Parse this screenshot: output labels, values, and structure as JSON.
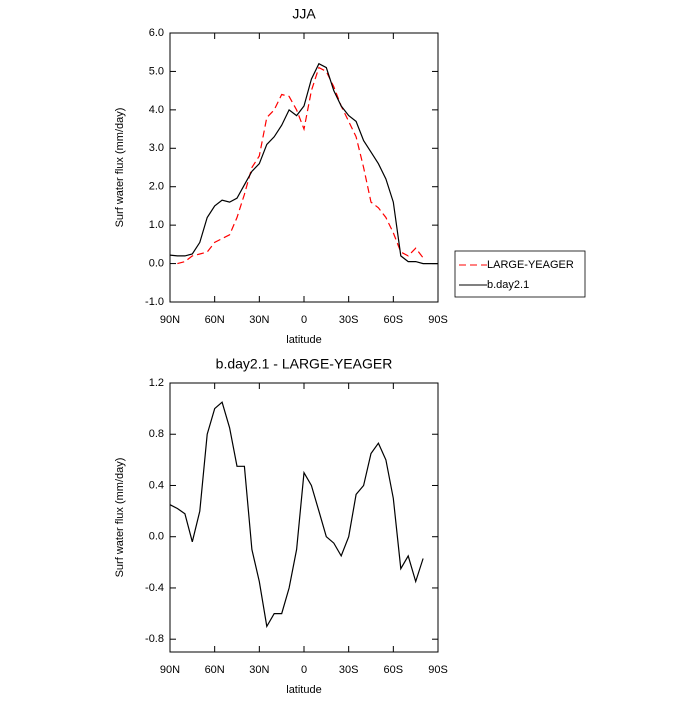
{
  "chart_data": [
    {
      "type": "line",
      "title": "JJA",
      "xlabel": "latitude",
      "ylabel": "Surf water flux (mm/day)",
      "x": [
        90,
        85,
        80,
        75,
        70,
        65,
        60,
        55,
        50,
        45,
        40,
        35,
        30,
        25,
        20,
        15,
        10,
        5,
        0,
        -5,
        -10,
        -15,
        -20,
        -25,
        -30,
        -35,
        -40,
        -45,
        -50,
        -55,
        -60,
        -65,
        -70,
        -75,
        -80,
        -85,
        -90
      ],
      "xlim": [
        90,
        -90
      ],
      "xticks": [
        {
          "value": 90,
          "label": "90N"
        },
        {
          "value": 60,
          "label": "60N"
        },
        {
          "value": 30,
          "label": "30N"
        },
        0,
        {
          "value": -30,
          "label": "30S"
        },
        {
          "value": -60,
          "label": "60S"
        },
        {
          "value": -90,
          "label": "90S"
        }
      ],
      "ylim": [
        -1,
        6
      ],
      "yticks": [
        {
          "value": -1,
          "label": "-1.0"
        },
        {
          "value": 0,
          "label": "0.0"
        },
        {
          "value": 1,
          "label": "1.0"
        },
        {
          "value": 2,
          "label": "2.0"
        },
        {
          "value": 3,
          "label": "3.0"
        },
        {
          "value": 4,
          "label": "4.0"
        },
        {
          "value": 5,
          "label": "5.0"
        },
        {
          "value": 6,
          "label": "6.0"
        }
      ],
      "legend": "right",
      "series": [
        {
          "name": "LARGE-YEAGER",
          "color": "#ff0000",
          "dash": true,
          "values": [
            null,
            0.0,
            0.05,
            0.2,
            0.25,
            0.3,
            0.55,
            0.65,
            0.75,
            1.2,
            1.8,
            2.5,
            2.8,
            3.8,
            4.0,
            4.4,
            4.35,
            4.0,
            3.5,
            4.5,
            5.1,
            5.0,
            4.6,
            4.1,
            3.7,
            3.3,
            2.5,
            1.6,
            1.45,
            1.2,
            0.8,
            0.3,
            0.2,
            0.4,
            0.15,
            null,
            null
          ]
        },
        {
          "name": "b.day2.1",
          "color": "#000000",
          "dash": false,
          "values": [
            0.22,
            0.2,
            0.2,
            0.25,
            0.55,
            1.2,
            1.5,
            1.65,
            1.6,
            1.7,
            2.05,
            2.4,
            2.6,
            3.1,
            3.3,
            3.6,
            4.0,
            3.85,
            4.1,
            4.8,
            5.2,
            5.1,
            4.5,
            4.1,
            3.85,
            3.7,
            3.2,
            2.9,
            2.6,
            2.2,
            1.6,
            0.2,
            0.05,
            0.05,
            0.0,
            0.0,
            0.0
          ]
        }
      ]
    },
    {
      "type": "line",
      "title": "b.day2.1 - LARGE-YEAGER",
      "xlabel": "latitude",
      "ylabel": "Surf water flux (mm/day)",
      "x": [
        90,
        85,
        80,
        75,
        70,
        65,
        60,
        55,
        50,
        45,
        40,
        35,
        30,
        25,
        20,
        15,
        10,
        5,
        0,
        -5,
        -10,
        -15,
        -20,
        -25,
        -30,
        -35,
        -40,
        -45,
        -50,
        -55,
        -60,
        -65,
        -70,
        -75,
        -80
      ],
      "xlim": [
        90,
        -90
      ],
      "xticks": [
        {
          "value": 90,
          "label": "90N"
        },
        {
          "value": 60,
          "label": "60N"
        },
        {
          "value": 30,
          "label": "30N"
        },
        0,
        {
          "value": -30,
          "label": "30S"
        },
        {
          "value": -60,
          "label": "60S"
        },
        {
          "value": -90,
          "label": "90S"
        }
      ],
      "ylim": [
        -0.9,
        1.2
      ],
      "yticks": [
        -0.8,
        -0.4,
        {
          "value": 0,
          "label": "0.0"
        },
        0.4,
        0.8,
        1.2
      ],
      "series": [
        {
          "color": "#000000",
          "values": [
            0.25,
            0.22,
            0.18,
            -0.04,
            0.2,
            0.8,
            1.0,
            1.05,
            0.85,
            0.55,
            0.55,
            -0.1,
            -0.35,
            -0.7,
            -0.6,
            -0.6,
            -0.4,
            -0.1,
            0.5,
            0.4,
            0.2,
            0.0,
            -0.05,
            -0.15,
            0.0,
            0.33,
            0.4,
            0.65,
            0.73,
            0.6,
            0.3,
            -0.25,
            -0.15,
            -0.35,
            -0.17
          ]
        }
      ]
    }
  ]
}
